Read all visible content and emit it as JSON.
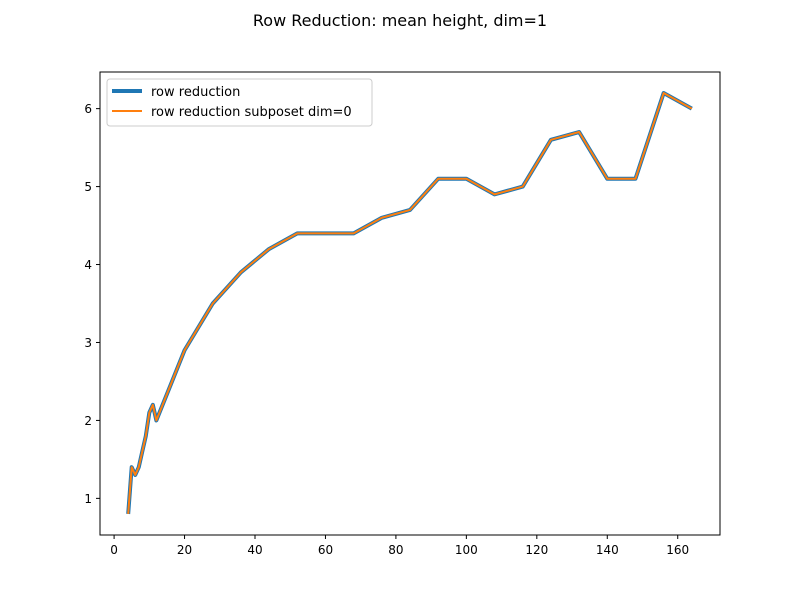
{
  "chart_data": {
    "type": "line",
    "title": "Row Reduction: mean height, dim=1",
    "xlabel": "",
    "ylabel": "",
    "xlim": [
      -4,
      172
    ],
    "ylim": [
      0.53,
      6.47
    ],
    "xticks": [
      0,
      20,
      40,
      60,
      80,
      100,
      120,
      140,
      160
    ],
    "yticks": [
      1,
      2,
      3,
      4,
      5,
      6
    ],
    "grid": false,
    "legend_position": "upper-left",
    "series": [
      {
        "name": "row reduction",
        "color": "#1f77b4",
        "x": [
          4,
          5,
          6,
          7,
          8,
          9,
          10,
          11,
          12,
          20,
          28,
          36,
          44,
          52,
          60,
          68,
          76,
          84,
          92,
          100,
          108,
          116,
          124,
          132,
          140,
          148,
          156,
          164
        ],
        "y": [
          0.8,
          1.4,
          1.3,
          1.4,
          1.6,
          1.8,
          2.1,
          2.2,
          2.0,
          2.9,
          3.5,
          3.9,
          4.2,
          4.4,
          4.4,
          4.4,
          4.6,
          4.7,
          5.1,
          5.1,
          4.9,
          5.0,
          5.6,
          5.7,
          5.1,
          5.1,
          6.2,
          6.0
        ]
      },
      {
        "name": "row reduction subposet dim=0",
        "color": "#ff7f0e",
        "x": [
          4,
          5,
          6,
          7,
          8,
          9,
          10,
          11,
          12,
          20,
          28,
          36,
          44,
          52,
          60,
          68,
          76,
          84,
          92,
          100,
          108,
          116,
          124,
          132,
          140,
          148,
          156,
          164
        ],
        "y": [
          0.8,
          1.4,
          1.3,
          1.4,
          1.6,
          1.8,
          2.1,
          2.2,
          2.0,
          2.9,
          3.5,
          3.9,
          4.2,
          4.4,
          4.4,
          4.4,
          4.6,
          4.7,
          5.1,
          5.1,
          4.9,
          5.0,
          5.6,
          5.7,
          5.1,
          5.1,
          6.2,
          6.0
        ]
      }
    ]
  }
}
